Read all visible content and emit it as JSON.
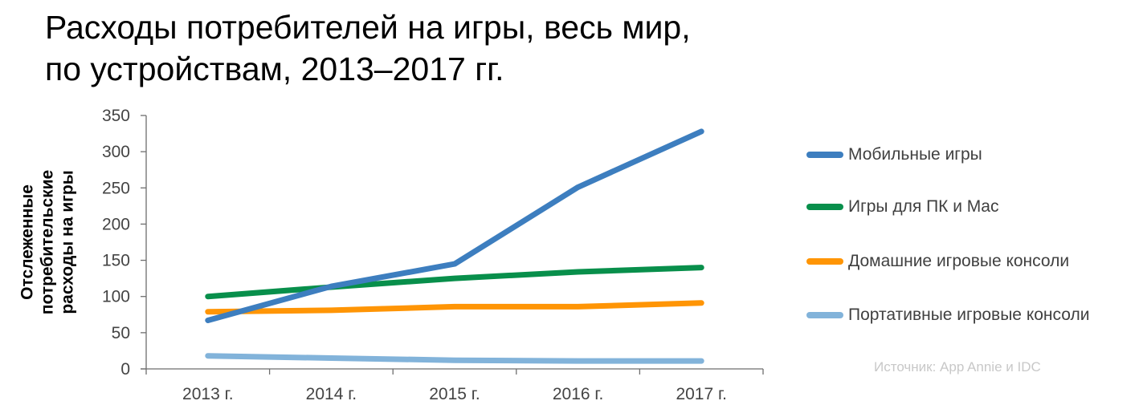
{
  "title_line1": "Расходы потребителей на игры, весь мир,",
  "title_line2": "по устройствам, 2013–2017 гг.",
  "source": "Источник: App Annie и IDC",
  "chart_data": {
    "type": "line",
    "title": "Расходы потребителей на игры, весь мир, по устройствам, 2013–2017 гг.",
    "ylabel_lines": [
      "Отслеженные",
      "потребительские",
      "расходы на игры"
    ],
    "categories": [
      "2013 г.",
      "2014 г.",
      "2015 г.",
      "2016 г.",
      "2017 г."
    ],
    "ylim": [
      0,
      350
    ],
    "yticks": [
      "0",
      "50",
      "100",
      "150",
      "200",
      "250",
      "300",
      "350"
    ],
    "grid": false,
    "legend_position": "right",
    "series": [
      {
        "name": "Мобильные игры",
        "color": "#3d7ebf",
        "values": [
          67,
          114,
          145,
          251,
          328
        ]
      },
      {
        "name": "Игры для ПК и Mac",
        "color": "#088f4b",
        "values": [
          100,
          113,
          125,
          134,
          140
        ]
      },
      {
        "name": "Домашние игровые консоли",
        "color": "#ff9505",
        "values": [
          79,
          81,
          86,
          86,
          91
        ]
      },
      {
        "name": "Портативные игровые консоли",
        "color": "#82b3da",
        "values": [
          18,
          15,
          12,
          11,
          11
        ]
      }
    ]
  }
}
